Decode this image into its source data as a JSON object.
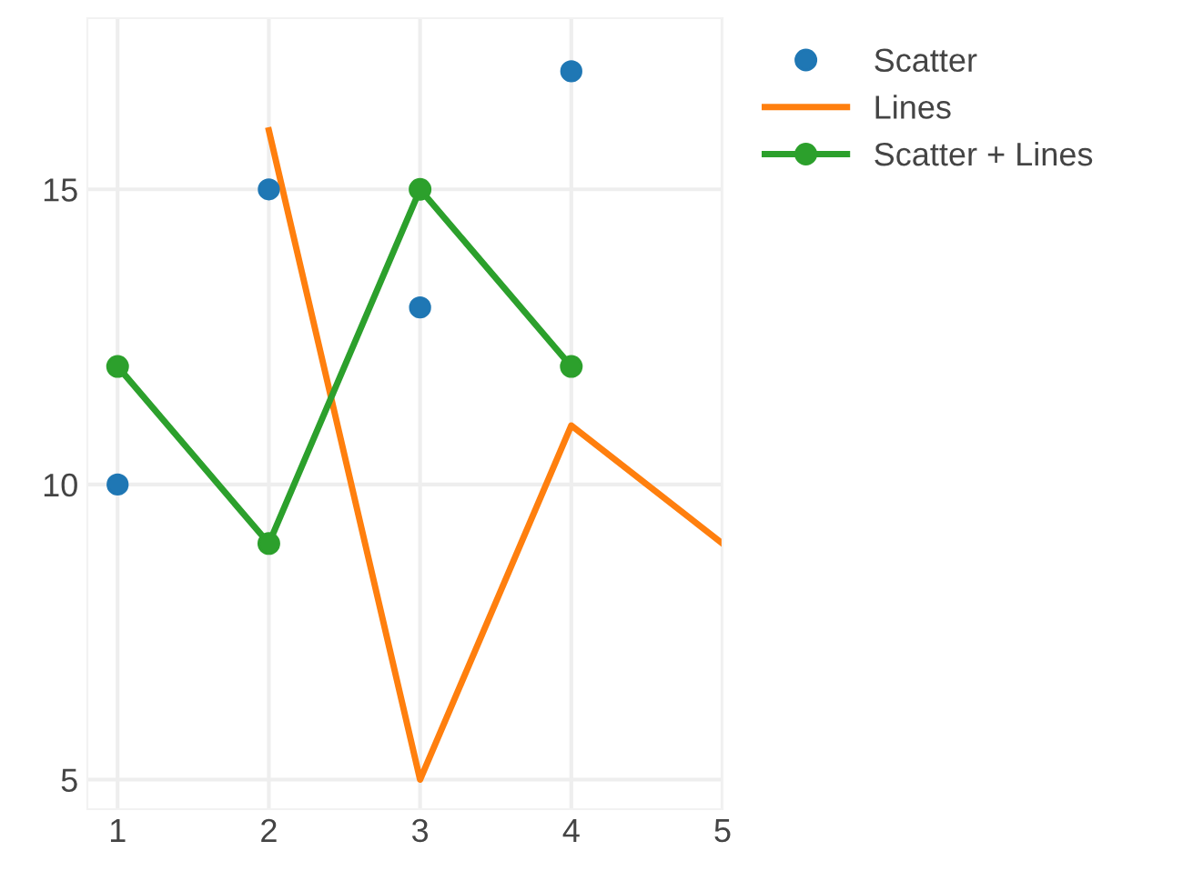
{
  "chart_data": {
    "type": "line",
    "series": [
      {
        "name": "Scatter",
        "type": "scatter",
        "color": "#1f77b4",
        "marker": "circle",
        "x": [
          1,
          2,
          3,
          4
        ],
        "values": [
          10,
          15,
          13,
          17
        ]
      },
      {
        "name": "Lines",
        "color": "#ff7f0e",
        "marker": "none",
        "x": [
          2,
          3,
          4,
          5
        ],
        "values": [
          16,
          5,
          11,
          9
        ]
      },
      {
        "name": "Scatter + Lines",
        "color": "#2ca02c",
        "marker": "circle",
        "x": [
          1,
          2,
          3,
          4
        ],
        "values": [
          12,
          9,
          15,
          12
        ]
      }
    ],
    "xlim": [
      0.8,
      5
    ],
    "xticks": [
      1,
      2,
      3,
      4,
      5
    ],
    "ylim": [
      4.5,
      17.9
    ],
    "yticks": [
      5,
      10,
      15
    ],
    "grid": true,
    "legend": "top right"
  }
}
